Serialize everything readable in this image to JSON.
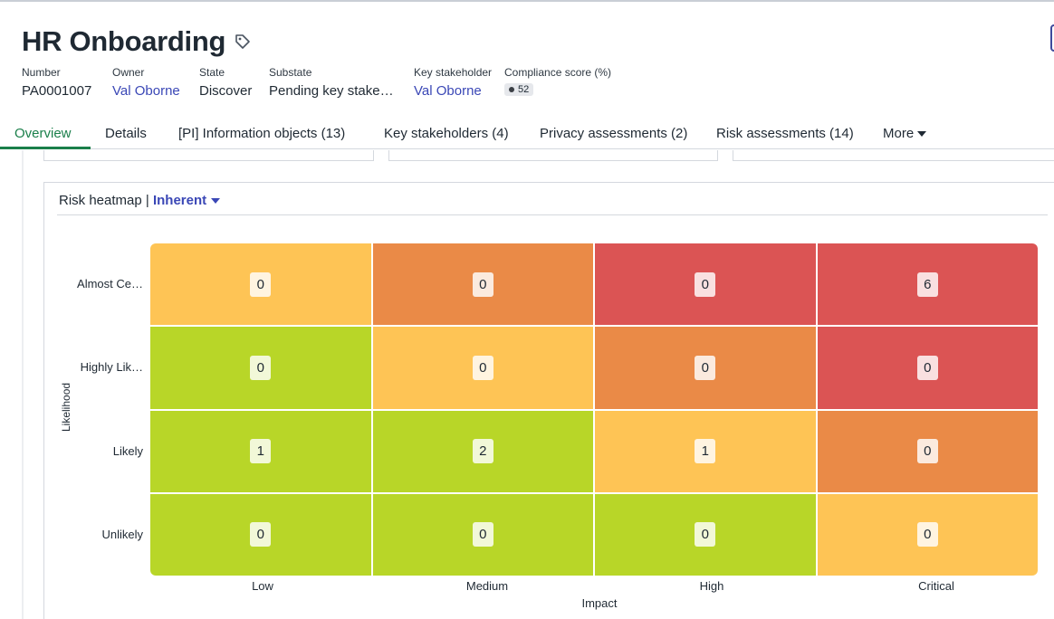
{
  "record": {
    "title": "HR Onboarding",
    "fields": [
      {
        "label": "Number",
        "value": "PA0001007",
        "link": false
      },
      {
        "label": "Owner",
        "value": "Val Oborne",
        "link": true
      },
      {
        "label": "State",
        "value": "Discover",
        "link": false
      },
      {
        "label": "Substate",
        "value": "Pending key stake…",
        "link": false
      },
      {
        "label": "Key stakeholder",
        "value": "Val Oborne",
        "link": true
      }
    ],
    "compliance": {
      "label": "Compliance score (%)",
      "value": "52"
    }
  },
  "tabs": [
    {
      "label": "Overview",
      "active": true
    },
    {
      "label": "Details"
    },
    {
      "label": "[PI] Information objects (13)"
    },
    {
      "label": "Key stakeholders (4)"
    },
    {
      "label": "Privacy assessments (2)"
    },
    {
      "label": "Risk assessments (14)"
    },
    {
      "label": "More"
    }
  ],
  "heatmap": {
    "title": "Risk heatmap",
    "separator": "|",
    "view": "Inherent"
  },
  "colors": {
    "green": "#b8d628",
    "yellow": "#fec455",
    "orange": "#ea8a47",
    "red": "#db5454",
    "accent_link": "#3a47b6",
    "active_tab": "#1a7f4a"
  },
  "chart_data": {
    "type": "heatmap",
    "title": "Risk heatmap",
    "xlabel": "Impact",
    "ylabel": "Likelihood",
    "x": [
      "Low",
      "Medium",
      "High",
      "Critical"
    ],
    "y": [
      "Almost Ce…",
      "Highly Lik…",
      "Likely",
      "Unlikely"
    ],
    "values": [
      [
        0,
        0,
        0,
        6
      ],
      [
        0,
        0,
        0,
        0
      ],
      [
        1,
        2,
        1,
        0
      ],
      [
        0,
        0,
        0,
        0
      ]
    ],
    "cell_colors": [
      [
        "yellow",
        "orange",
        "red",
        "red"
      ],
      [
        "green",
        "yellow",
        "orange",
        "red"
      ],
      [
        "green",
        "green",
        "yellow",
        "orange"
      ],
      [
        "green",
        "green",
        "green",
        "yellow"
      ]
    ]
  }
}
